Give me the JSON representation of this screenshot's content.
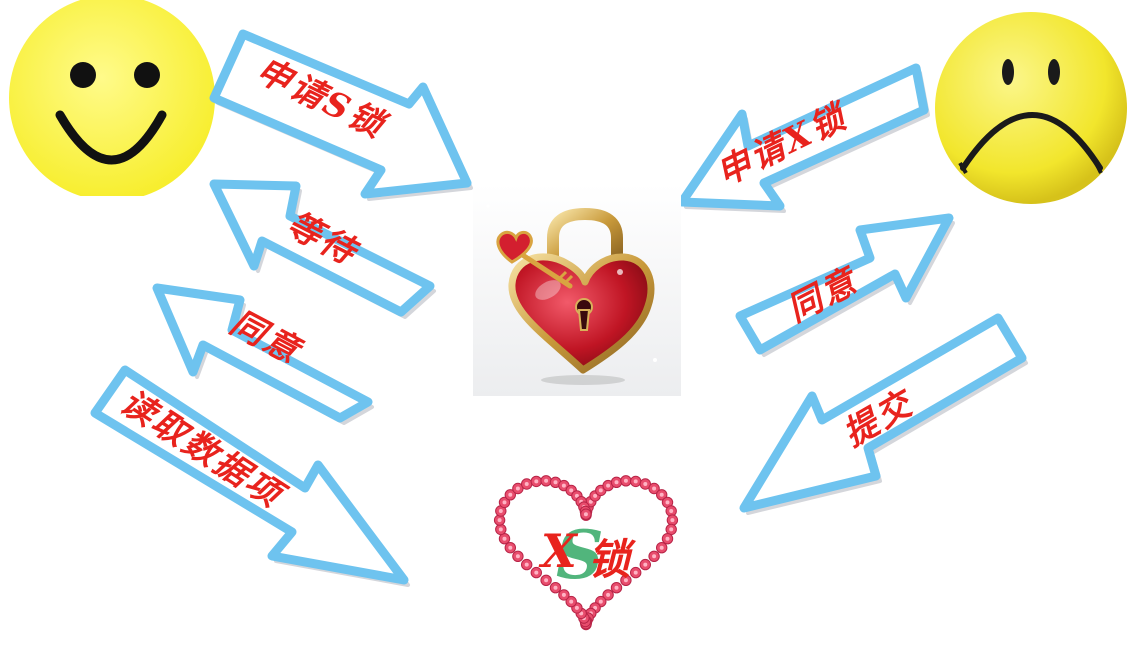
{
  "left_actor": {
    "icon": "happy-face-icon",
    "color": "#fff44f"
  },
  "right_actor": {
    "icon": "sad-face-icon",
    "color": "#f7ef3a"
  },
  "center_icon": "heart-padlock-with-key-icon",
  "bottom_icon": "rose-heart-wreath-icon",
  "arrows": {
    "request_s_lock": "申请S锁",
    "wait": "等待",
    "agree_left": "同意",
    "read_data": "读取数据项",
    "request_x_lock": "申请X锁",
    "agree_right": "同意",
    "commit": "提交"
  },
  "lock_label": {
    "s_letter": "S",
    "x_letter": "X",
    "lock_char": "锁"
  },
  "colors": {
    "arrow_border": "#6ec3ef",
    "arrow_text": "#e8231d",
    "s_letter": "#3fae6e",
    "roses": "#e84d6d"
  }
}
